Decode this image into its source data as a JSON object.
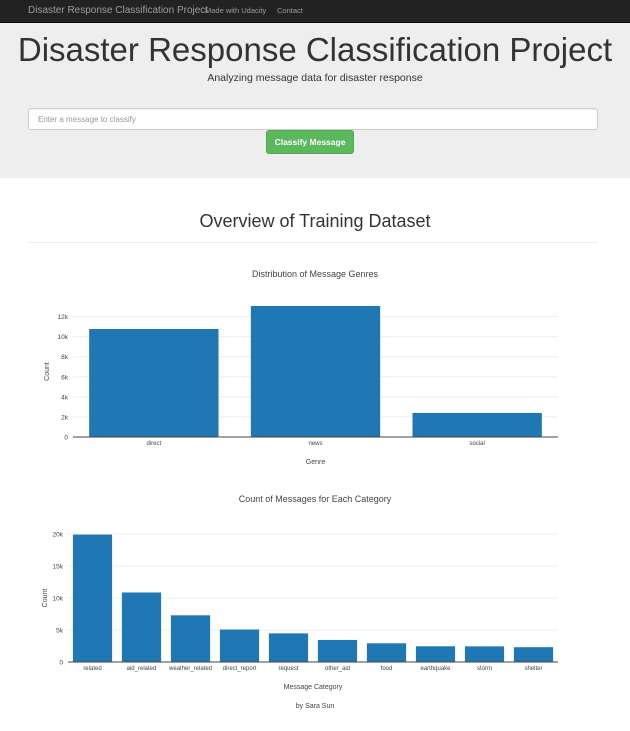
{
  "navbar": {
    "brand": "Disaster Response Classification Project",
    "links": [
      "Made with Udacity",
      "Contact"
    ]
  },
  "hero": {
    "title": "Disaster Response Classification Project",
    "subtitle": "Analyzing message data for disaster response",
    "input_placeholder": "Enter a message to classify",
    "button_label": "Classify Message"
  },
  "section_title": "Overview of Training Dataset",
  "footer": "by Sara Sun",
  "colors": {
    "bar": "#1f77b4",
    "button": "#5cb85c",
    "navbar": "#222222",
    "hero": "#eeeeee"
  },
  "chart_data": [
    {
      "type": "bar",
      "title": "Distribution of Message Genres",
      "xlabel": "Genre",
      "ylabel": "Count",
      "categories": [
        "direct",
        "news",
        "social"
      ],
      "values": [
        10766,
        13054,
        2396
      ],
      "ylim": [
        0,
        13054
      ],
      "yticks": [
        0,
        2000,
        4000,
        6000,
        8000,
        10000,
        12000
      ],
      "ytick_labels": [
        "0",
        "2k",
        "4k",
        "6k",
        "8k",
        "10k",
        "12k"
      ],
      "grid": true
    },
    {
      "type": "bar",
      "title": "Count of Messages for Each Category",
      "xlabel": "Message Category",
      "ylabel": "Count",
      "categories": [
        "related",
        "aid_related",
        "weather_related",
        "direct_report",
        "request",
        "other_aid",
        "food",
        "earthquake",
        "storm",
        "shelter"
      ],
      "values": [
        19906,
        10860,
        7297,
        5075,
        4474,
        3446,
        2923,
        2455,
        2443,
        2314
      ],
      "ylim": [
        0,
        20000
      ],
      "yticks": [
        0,
        5000,
        10000,
        15000,
        20000
      ],
      "ytick_labels": [
        "0",
        "5k",
        "10k",
        "15k",
        "20k"
      ],
      "grid": true
    }
  ]
}
